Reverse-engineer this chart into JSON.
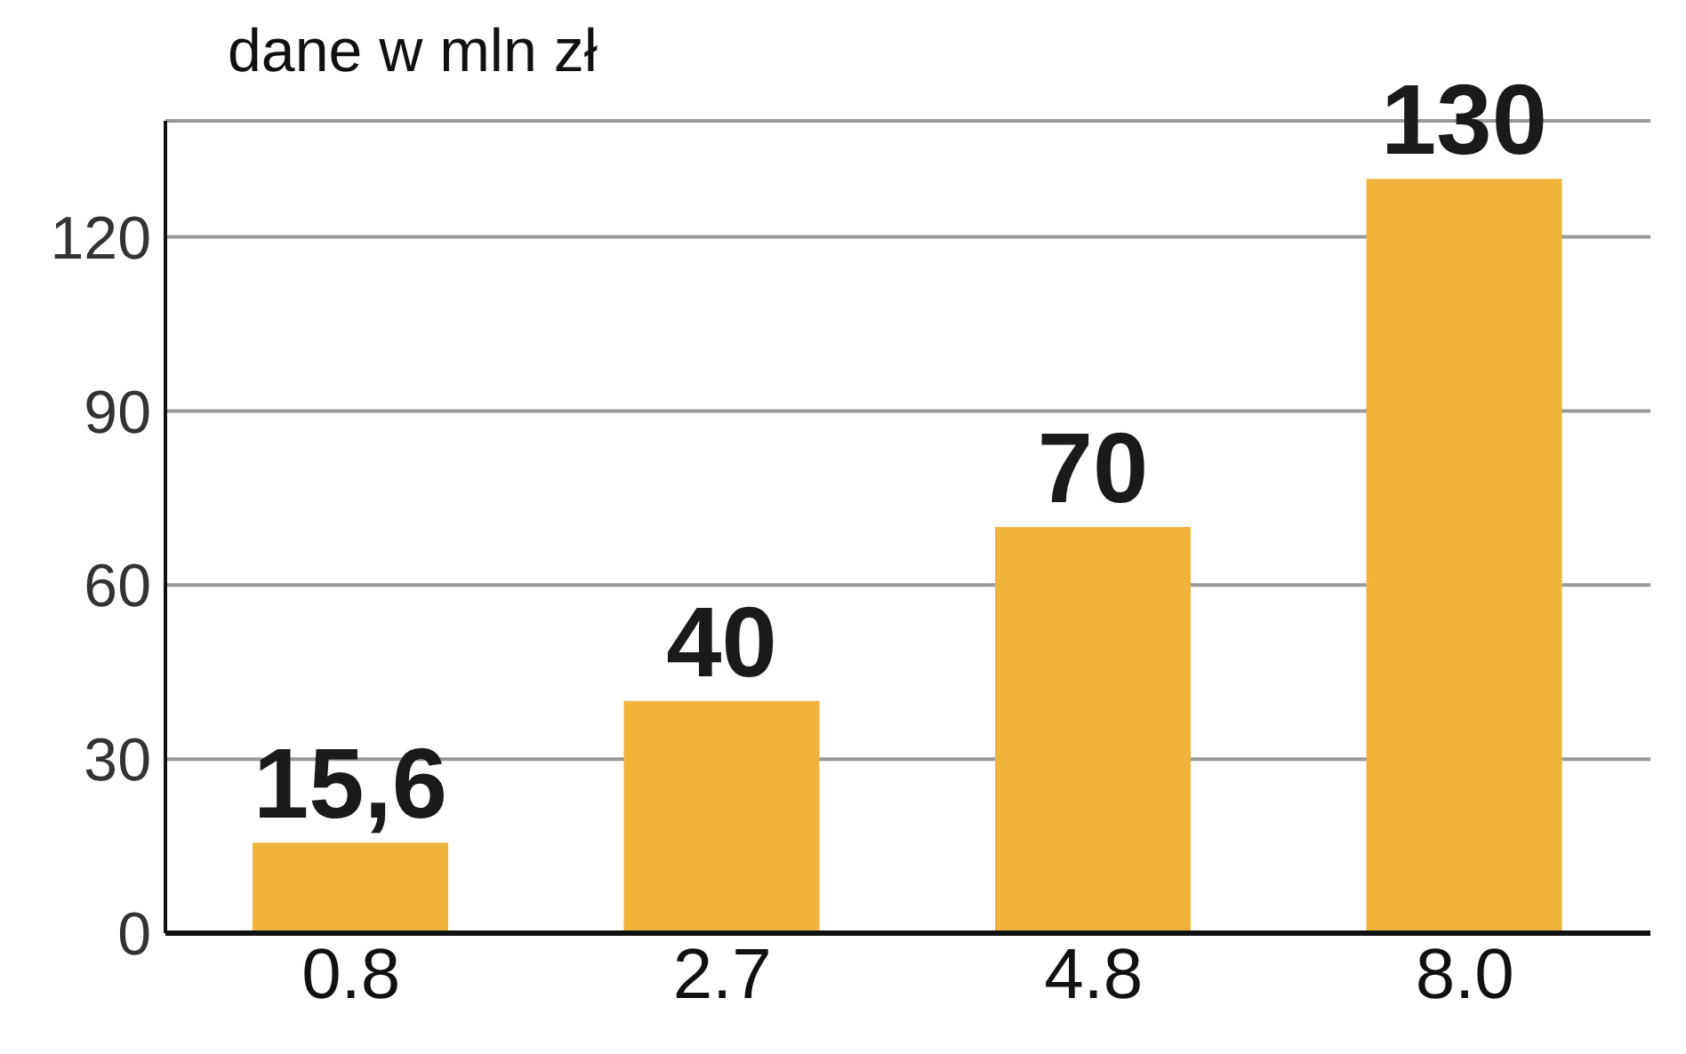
{
  "chart_data": {
    "type": "bar",
    "title": "dane w mln zł",
    "categories": [
      "0.8",
      "2.7",
      "4.8",
      "8.0"
    ],
    "values": [
      15.6,
      40,
      70,
      130
    ],
    "value_labels": [
      "15,6",
      "40",
      "70",
      "130"
    ],
    "color": "#f0b43c",
    "ylim": [
      0,
      140
    ],
    "yticks": [
      0,
      30,
      60,
      90,
      120
    ],
    "grid": "y"
  }
}
